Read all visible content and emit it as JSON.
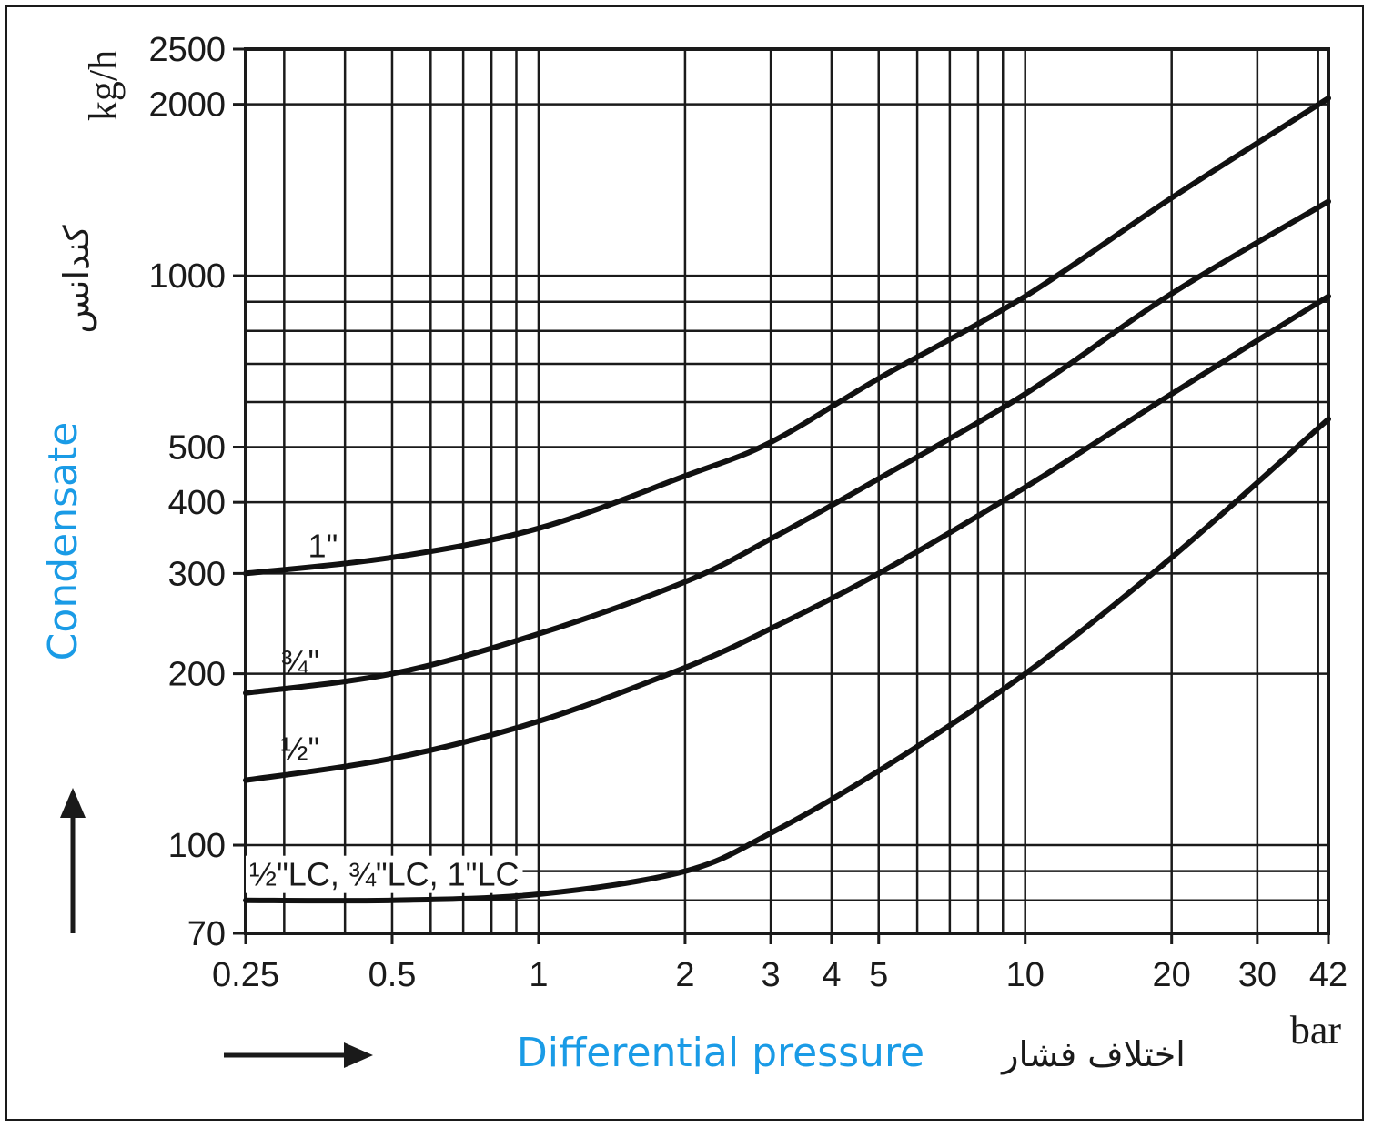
{
  "chart_data": {
    "type": "line",
    "x_scale": "log",
    "y_scale": "log",
    "xlim": [
      0.25,
      42
    ],
    "ylim": [
      70,
      2500
    ],
    "x_ticks": [
      "0.25",
      "0.5",
      "1",
      "2",
      "3",
      "4",
      "5",
      "10",
      "20",
      "30",
      "42"
    ],
    "y_ticks": [
      "70",
      "100",
      "200",
      "300",
      "400",
      "500",
      "1000",
      "2000",
      "2500"
    ],
    "x_unit": "bar",
    "y_unit": "kg/h",
    "xlabel": "Differential pressure",
    "xlabel_fa": "اختلاف فشار",
    "ylabel": "Condensate",
    "ylabel_fa": "کندانس",
    "label_color": "#1a9be6",
    "grid": true,
    "series": [
      {
        "name": "1\"",
        "x": [
          0.25,
          0.5,
          1,
          2,
          3,
          5,
          10,
          20,
          42
        ],
        "y": [
          300,
          320,
          360,
          445,
          510,
          660,
          920,
          1370,
          2050
        ]
      },
      {
        "name": "¾\"",
        "x": [
          0.25,
          0.5,
          1,
          2,
          3,
          5,
          10,
          20,
          42
        ],
        "y": [
          185,
          200,
          235,
          290,
          345,
          440,
          620,
          930,
          1350
        ]
      },
      {
        "name": "½\"",
        "x": [
          0.25,
          0.5,
          1,
          2,
          3,
          5,
          10,
          20,
          42
        ],
        "y": [
          130,
          142,
          165,
          205,
          240,
          300,
          425,
          620,
          920
        ]
      },
      {
        "name": "½\"LC, ¾\"LC, 1\"LC",
        "x": [
          0.25,
          0.5,
          1,
          2,
          3,
          5,
          10,
          20,
          42
        ],
        "y": [
          80,
          80,
          82,
          90,
          105,
          135,
          200,
          320,
          560
        ]
      }
    ]
  }
}
